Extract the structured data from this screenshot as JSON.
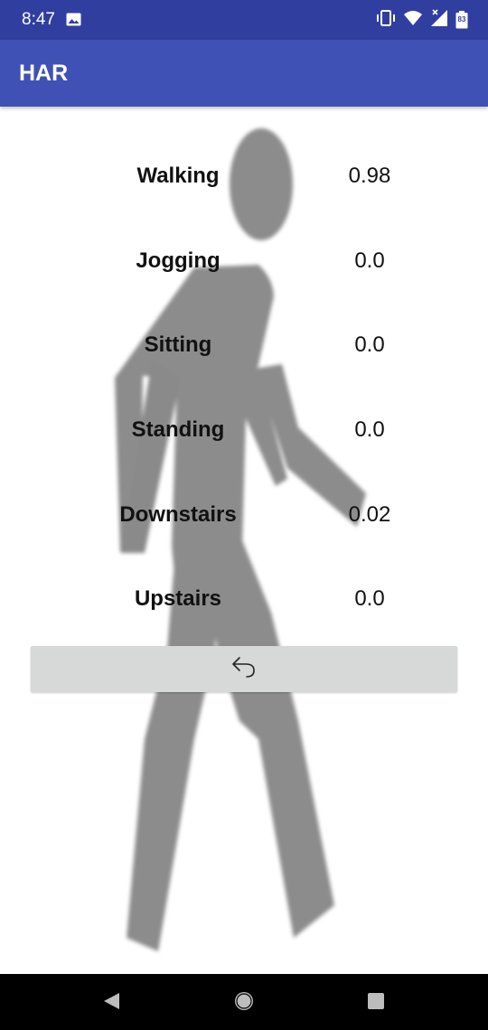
{
  "status_bar": {
    "time": "8:47",
    "left_icon": "image-icon",
    "right_icons": [
      "vibrate-icon",
      "wifi-icon",
      "signal-icon",
      "battery-icon"
    ],
    "battery_level": "83"
  },
  "app_bar": {
    "title": "HAR",
    "color": "#3f51b5",
    "status_color": "#303f9f"
  },
  "activities": [
    {
      "label": "Walking",
      "value": "0.98"
    },
    {
      "label": "Jogging",
      "value": "0.0"
    },
    {
      "label": "Sitting",
      "value": "0.0"
    },
    {
      "label": "Standing",
      "value": "0.0"
    },
    {
      "label": "Downstairs",
      "value": "0.02"
    },
    {
      "label": "Upstairs",
      "value": "0.0"
    }
  ],
  "undo_button": {
    "icon": "undo-icon"
  },
  "background_figure": "walking-person-figure",
  "nav_bar": {
    "icons": [
      "back-icon",
      "home-icon",
      "recents-icon"
    ]
  }
}
